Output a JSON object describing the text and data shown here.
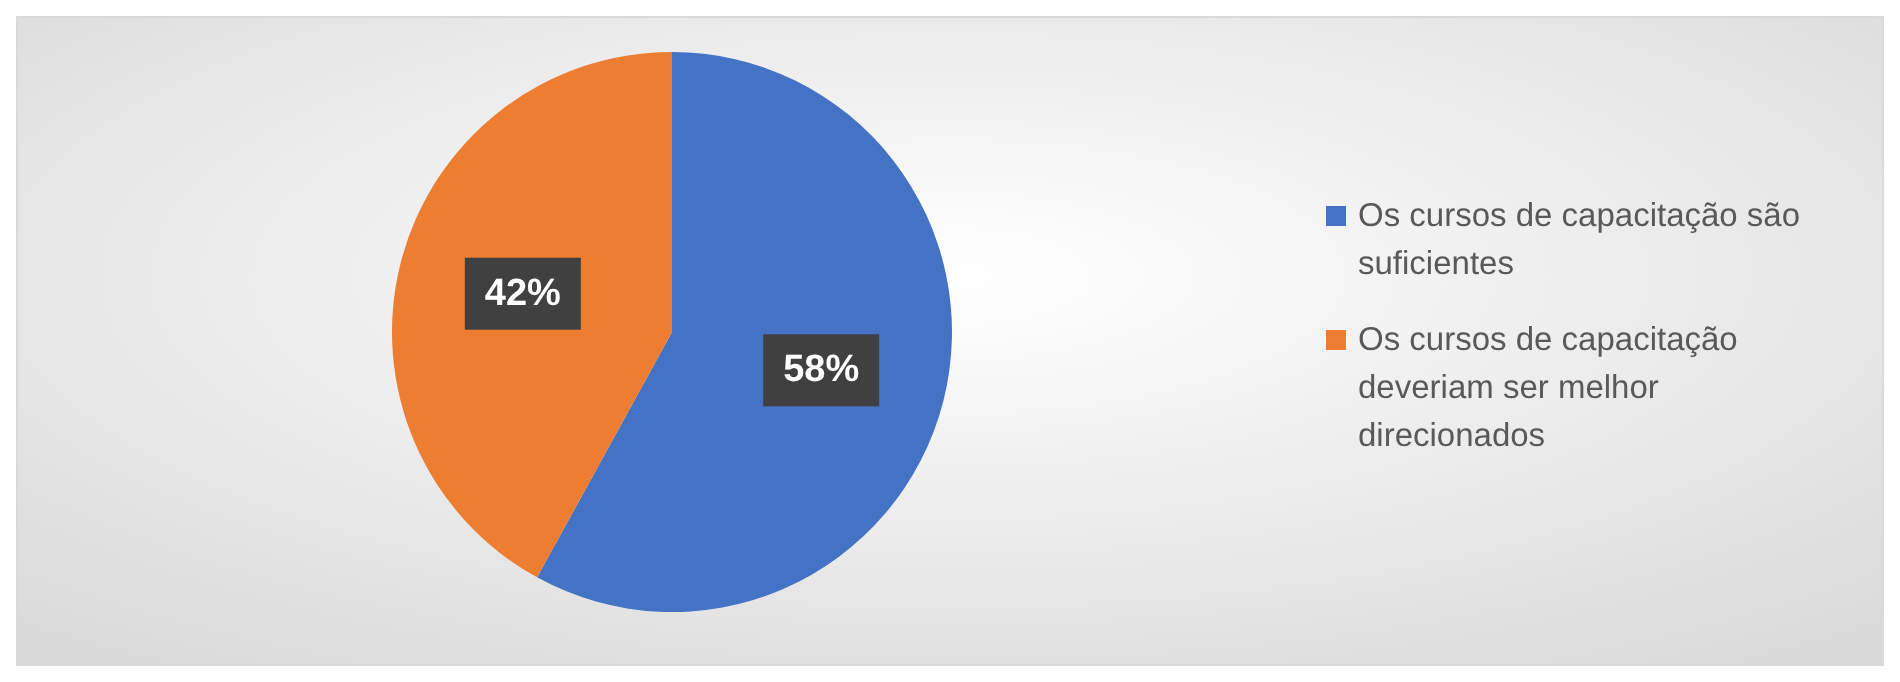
{
  "chart_data": {
    "type": "pie",
    "categories": [
      "Os cursos de capacitação são suficientes",
      "Os cursos de capacitação deveriam ser melhor direcionados"
    ],
    "values": [
      58,
      42
    ],
    "value_labels": [
      "58%",
      "42%"
    ],
    "colors": [
      "#4472c4",
      "#ed7d31"
    ],
    "legend": "right"
  }
}
